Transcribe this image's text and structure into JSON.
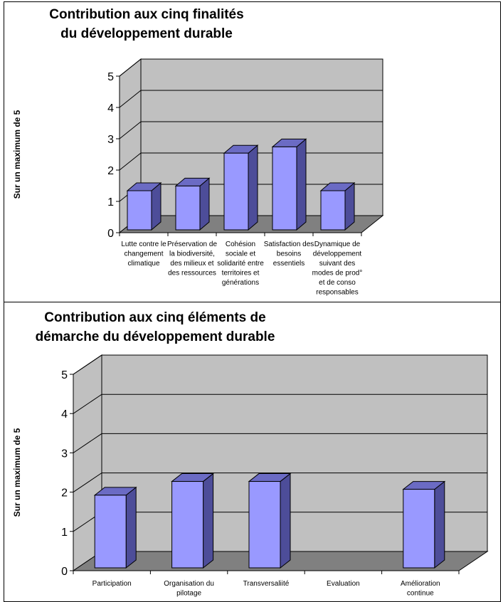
{
  "chart_data": [
    {
      "type": "bar",
      "title": "Contribution aux cinq finalités du développement durable",
      "title_lines": [
        "Contribution aux cinq finalités",
        "du développement durable"
      ],
      "xlabel": "",
      "ylabel": "Sur un maximum de 5",
      "ylim": [
        0,
        5
      ],
      "yticks": [
        "0",
        "1",
        "2",
        "3",
        "4",
        "5"
      ],
      "categories": [
        "Lutte contre le changement climatique",
        "Préservation de la biodiversité, des milieux et des ressources",
        "Cohésion sociale et solidarité entre territoires et générations",
        "Satisfaction des besoins essentiels",
        "Dynamique de développement suivant des modes de prod° et de conso responsables"
      ],
      "category_lines": [
        [
          "Lutte contre le",
          "changement",
          "climatique"
        ],
        [
          "Préservation de",
          "la biodiversité,",
          "des milieux et",
          "des ressources"
        ],
        [
          "Cohésion",
          "sociale et",
          "solidarité entre",
          "territoires et",
          "générations"
        ],
        [
          "Satisfaction des",
          "besoins",
          "essentiels"
        ],
        [
          "Dynamique de",
          "développement",
          "suivant des",
          "modes de prod°",
          "et de conso",
          "responsables"
        ]
      ],
      "values": [
        1.25,
        1.4,
        2.45,
        2.65,
        1.25
      ],
      "grid": true,
      "colors": {
        "bar_front": "#9999ff",
        "bar_side": "#4d4d99",
        "bar_top": "#6b6bc4",
        "wall": "#c0c0c0",
        "floor": "#808080"
      }
    },
    {
      "type": "bar",
      "title": "Contribution aux cinq éléments de démarche du développement durable",
      "title_lines": [
        "Contribution aux cinq éléments de",
        "démarche du développement durable"
      ],
      "xlabel": "",
      "ylabel": "Sur un maximum de 5",
      "ylim": [
        0,
        5
      ],
      "yticks": [
        "0",
        "1",
        "2",
        "3",
        "4",
        "5"
      ],
      "categories": [
        "Participation",
        "Organisation du pilotage",
        "Transversaliité",
        "Evaluation",
        "Amélioration continue"
      ],
      "category_lines": [
        [
          "Participation"
        ],
        [
          "Organisation du",
          "pilotage"
        ],
        [
          "Transversaliité"
        ],
        [
          "Evaluation"
        ],
        [
          "Amélioration",
          "continue"
        ]
      ],
      "values": [
        1.85,
        2.2,
        2.2,
        0,
        2.0
      ],
      "grid": true,
      "colors": {
        "bar_front": "#9999ff",
        "bar_side": "#4d4d99",
        "bar_top": "#6b6bc4",
        "wall": "#c0c0c0",
        "floor": "#808080"
      }
    }
  ]
}
